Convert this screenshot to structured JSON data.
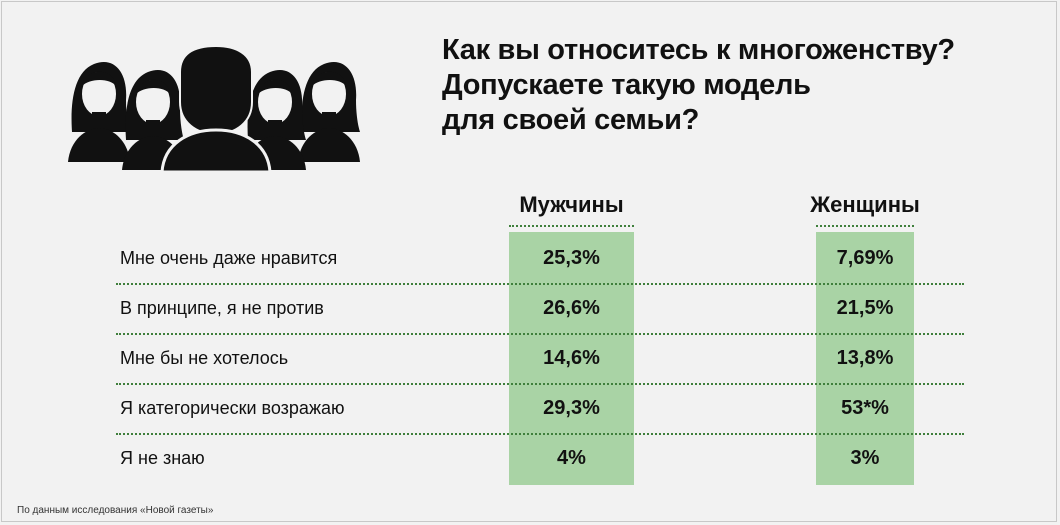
{
  "title_lines": [
    "Как вы относитесь к многоженству?",
    "Допускаете такую модель",
    "для своей семьи?"
  ],
  "source": "По данным исследования «Новой газеты»",
  "colors": {
    "highlight": "#a9d3a5",
    "dots": "#3f7f3c",
    "icon": "#111111",
    "background": "#f2f2f2"
  },
  "chart_data": {
    "type": "table",
    "title": "Как вы относитесь к многоженству? Допускаете такую модель для своей семьи?",
    "columns": [
      "Мужчины",
      "Женщины"
    ],
    "rows": [
      {
        "label": "Мне очень даже нравится",
        "values": [
          "25,3%",
          "7,69%"
        ]
      },
      {
        "label": "В принципе, я не против",
        "values": [
          "26,6%",
          "21,5%"
        ]
      },
      {
        "label": "Мне бы не хотелось",
        "values": [
          "14,6%",
          "13,8%"
        ]
      },
      {
        "label": "Я категорически возражаю",
        "values": [
          "29,3%",
          "53*%"
        ]
      },
      {
        "label": "Я не знаю",
        "values": [
          "4%",
          "3%"
        ]
      }
    ]
  }
}
